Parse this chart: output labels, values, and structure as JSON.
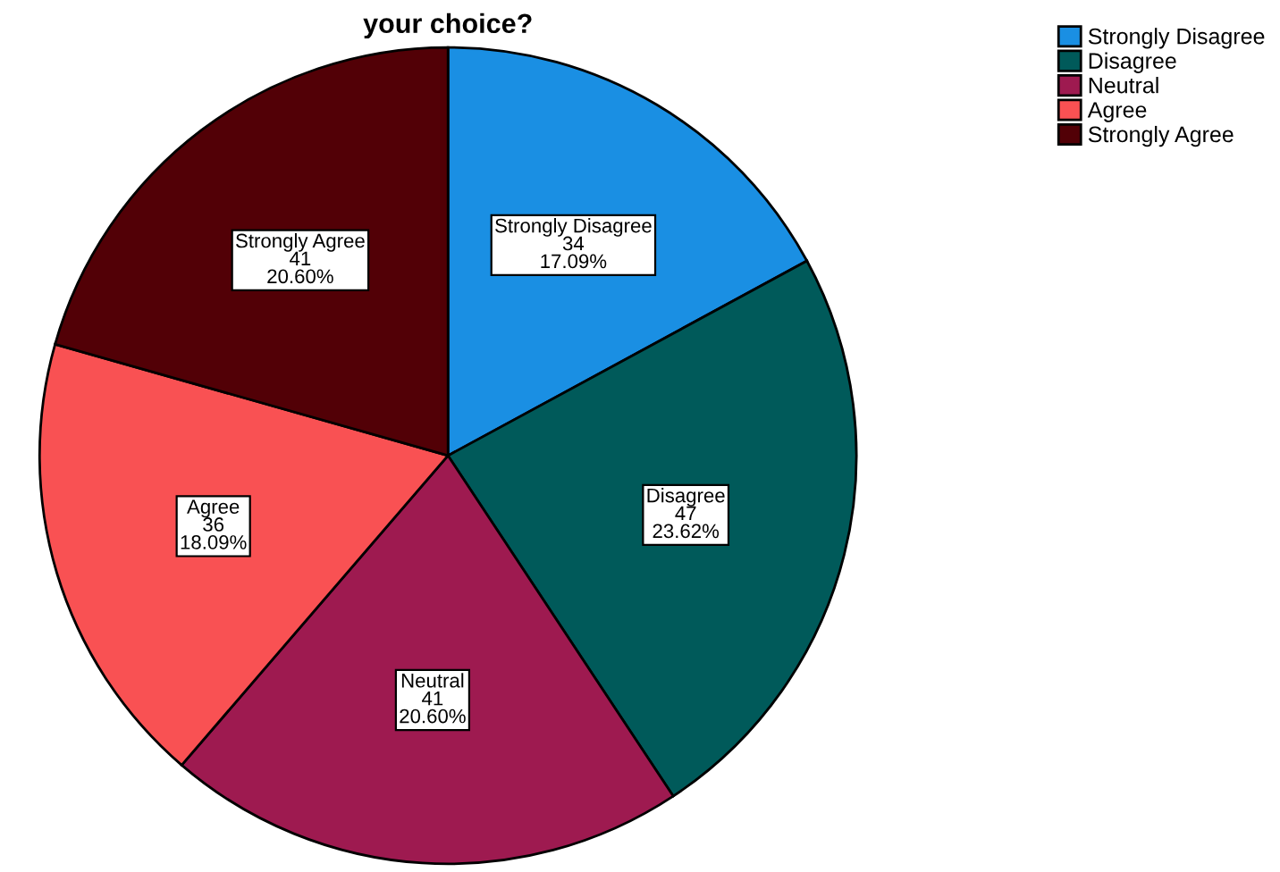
{
  "chart_data": {
    "type": "pie",
    "title": "your choice?",
    "categories": [
      "Strongly Disagree",
      "Disagree",
      "Neutral",
      "Agree",
      "Strongly Agree"
    ],
    "values": [
      34,
      47,
      41,
      36,
      41
    ],
    "value_labels": [
      "34\n17.09%",
      "47\n23.62%",
      "41\n20.60%",
      "36\n18.09%",
      "41\n20.60%"
    ],
    "colors": [
      "#1a8fe3",
      "#005a5a",
      "#9e1a50",
      "#f95153",
      "#520006"
    ],
    "legend": "top right"
  }
}
